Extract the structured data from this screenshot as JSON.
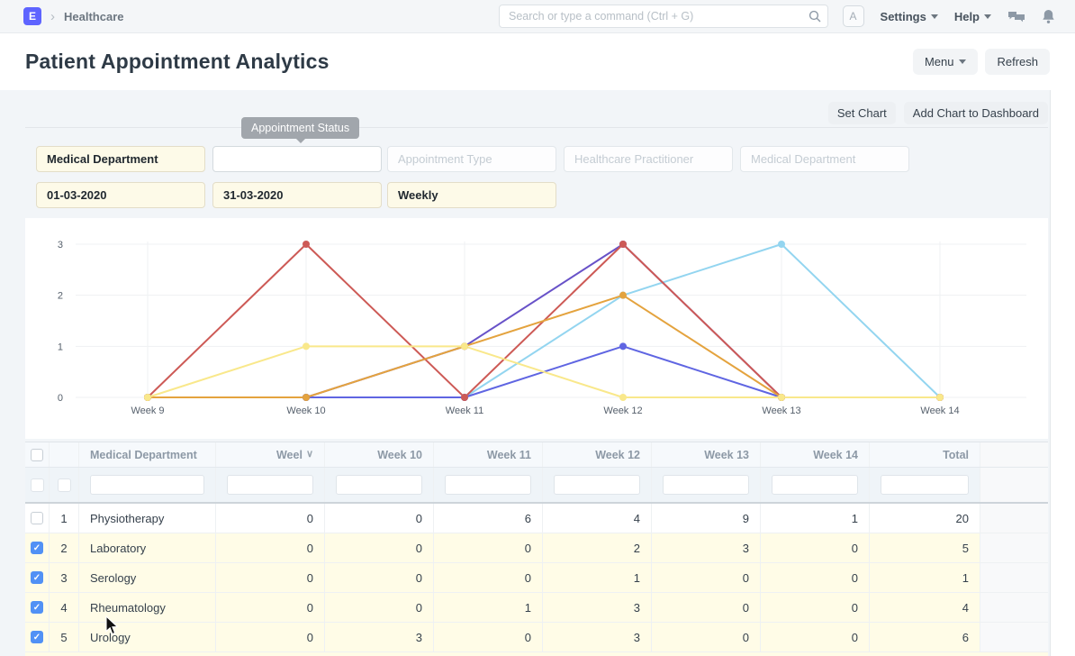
{
  "navbar": {
    "logo_letter": "E",
    "breadcrumb": "Healthcare",
    "search_placeholder": "Search or type a command (Ctrl + G)",
    "avatar_letter": "A",
    "settings_label": "Settings",
    "help_label": "Help"
  },
  "page": {
    "title": "Patient Appointment Analytics",
    "menu_label": "Menu",
    "refresh_label": "Refresh"
  },
  "chart_actions": {
    "set_chart": "Set Chart",
    "add_to_dashboard": "Add Chart to Dashboard"
  },
  "tooltip_text": "Appointment Status",
  "filters": {
    "row1": [
      {
        "kind": "filled",
        "value": "Medical Department",
        "name": "medical-department-filter"
      },
      {
        "kind": "empty",
        "value": "",
        "name": "appointment-status-filter"
      },
      {
        "kind": "placeholder",
        "placeholder": "Appointment Type",
        "name": "appointment-type-filter"
      },
      {
        "kind": "placeholder",
        "placeholder": "Healthcare Practitioner",
        "name": "healthcare-practitioner-filter"
      },
      {
        "kind": "placeholder",
        "placeholder": "Medical Department",
        "name": "department-group-filter"
      }
    ],
    "row2": [
      {
        "kind": "filled",
        "value": "01-03-2020",
        "name": "from-date-filter"
      },
      {
        "kind": "filled",
        "value": "31-03-2020",
        "name": "to-date-filter"
      },
      {
        "kind": "filled",
        "value": "Weekly",
        "name": "range-filter"
      }
    ]
  },
  "chart_data": {
    "type": "line",
    "x": [
      "Week 9",
      "Week 10",
      "Week 11",
      "Week 12",
      "Week 13",
      "Week 14"
    ],
    "yticks": [
      0,
      1,
      2,
      3
    ],
    "ylim": [
      0,
      3
    ],
    "grid": true,
    "legend_position": "none",
    "series": [
      {
        "name": "Laboratory",
        "color": "#93d5f0",
        "values": [
          0,
          0,
          0,
          2,
          3,
          0
        ]
      },
      {
        "name": "Serology",
        "color": "#5f65e2",
        "values": [
          0,
          0,
          0,
          1,
          0,
          0
        ]
      },
      {
        "name": "Rheumatology",
        "color": "#6852c8",
        "values": [
          0,
          0,
          1,
          3,
          0,
          0
        ]
      },
      {
        "name": "Urology",
        "color": "#cd5a56",
        "values": [
          0,
          3,
          0,
          3,
          0,
          0
        ]
      },
      {
        "name": "",
        "color": "#e4a33e",
        "values": [
          0,
          0,
          1,
          2,
          0,
          0
        ]
      },
      {
        "name": "",
        "color": "#f9e88b",
        "values": [
          0,
          1,
          1,
          0,
          0,
          0
        ]
      }
    ]
  },
  "table": {
    "columns": [
      "Medical Department",
      "Weel",
      "Week 10",
      "Week 11",
      "Week 12",
      "Week 13",
      "Week 14",
      "Total"
    ],
    "sorted_column": "Weel",
    "rows": [
      {
        "idx": 1,
        "dept": "Physiotherapy",
        "values": [
          0,
          0,
          6,
          4,
          9,
          1
        ],
        "total": 20,
        "checked": false
      },
      {
        "idx": 2,
        "dept": "Laboratory",
        "values": [
          0,
          0,
          0,
          2,
          3,
          0
        ],
        "total": 5,
        "checked": true
      },
      {
        "idx": 3,
        "dept": "Serology",
        "values": [
          0,
          0,
          0,
          1,
          0,
          0
        ],
        "total": 1,
        "checked": true
      },
      {
        "idx": 4,
        "dept": "Rheumatology",
        "values": [
          0,
          0,
          1,
          3,
          0,
          0
        ],
        "total": 4,
        "checked": true
      },
      {
        "idx": 5,
        "dept": "Urology",
        "values": [
          0,
          3,
          0,
          3,
          0,
          0
        ],
        "total": 6,
        "checked": true
      }
    ]
  },
  "colors": {
    "accent": "#5e64ff",
    "checkbox_checked": "#5191f5",
    "checked_row_bg": "#fffce7",
    "grid_line": "#eff1f3",
    "axis_text": "#555f6b"
  }
}
